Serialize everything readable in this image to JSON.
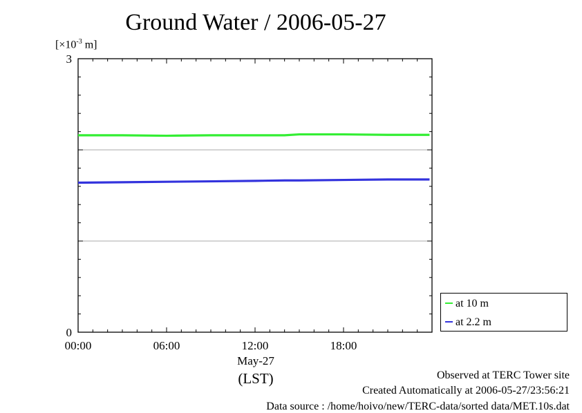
{
  "title": "Ground Water / 2006-05-27",
  "unit_label": {
    "prefix": "[×10",
    "exponent": "-3",
    "suffix": " m]"
  },
  "x_axis": {
    "date_label": "May-27",
    "timezone_label": "(LST)"
  },
  "footer": {
    "site": "Observed at TERC Tower site",
    "created": "Created Automatically at 2006-05-27/23:56:21",
    "source": "Data source : /home/hoivo/new/TERC-data/sorted  data/MET.10s.dat"
  },
  "colors": {
    "series_10m": "#33ee33",
    "series_2_2m": "#3333dd",
    "grid": "#aaaaaa",
    "axis": "#000000"
  },
  "chart_data": {
    "type": "line",
    "title": "Ground Water / 2006-05-27",
    "xlabel": "May-27 (LST)",
    "ylabel": "[×10-3 m]",
    "x_ticks": [
      "00:00",
      "06:00",
      "12:00",
      "18:00"
    ],
    "y_ticks": [
      "0",
      "3"
    ],
    "xlim": [
      "00:00",
      "24:00"
    ],
    "ylim": [
      0,
      3
    ],
    "grid": true,
    "legend_position": "bottom-right-outside",
    "x": [
      "00:00",
      "03:00",
      "06:00",
      "09:00",
      "12:00",
      "14:00",
      "15:00",
      "18:00",
      "21:00",
      "23:50"
    ],
    "series": [
      {
        "name": "at 10 m",
        "color": "#33ee33",
        "values": [
          2.16,
          2.16,
          2.155,
          2.16,
          2.16,
          2.16,
          2.17,
          2.17,
          2.165,
          2.165
        ]
      },
      {
        "name": "at 2.2 m",
        "color": "#3333dd",
        "values": [
          1.64,
          1.645,
          1.65,
          1.655,
          1.66,
          1.665,
          1.665,
          1.67,
          1.675,
          1.675
        ]
      }
    ]
  }
}
